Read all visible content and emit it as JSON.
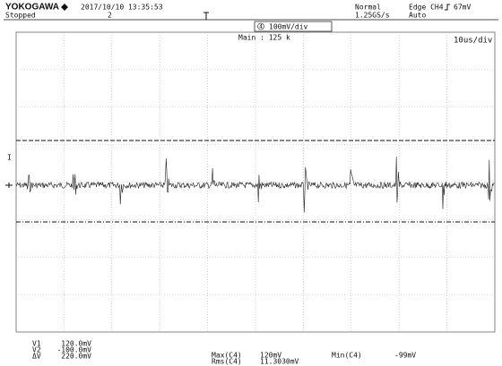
{
  "header": {
    "brand": "YOKOGAWA",
    "datetime": "2017/10/10 13:35:53",
    "status": "Stopped",
    "record": "2",
    "mode": "Normal",
    "sample_rate": "1.25GS/s",
    "trigger": "Edge CH4",
    "trigger_level": "67mV",
    "trigger_mode": "Auto"
  },
  "channel": {
    "number": "4",
    "scale": "100mV/div"
  },
  "main": "Main : 125 k",
  "timebase": "10us/div",
  "cursors": [
    {
      "label": "V1",
      "value": "120.0mV"
    },
    {
      "label": "V2",
      "value": "-100.0mV"
    },
    {
      "label": "ΔV",
      "value": "220.0mV"
    }
  ],
  "measurements": [
    {
      "label": "Max(C4)",
      "value": "120mV"
    },
    {
      "label": "Rms(C4)",
      "value": "11.3030mV"
    },
    {
      "label": "Min(C4)",
      "value": "-99mV"
    }
  ]
}
